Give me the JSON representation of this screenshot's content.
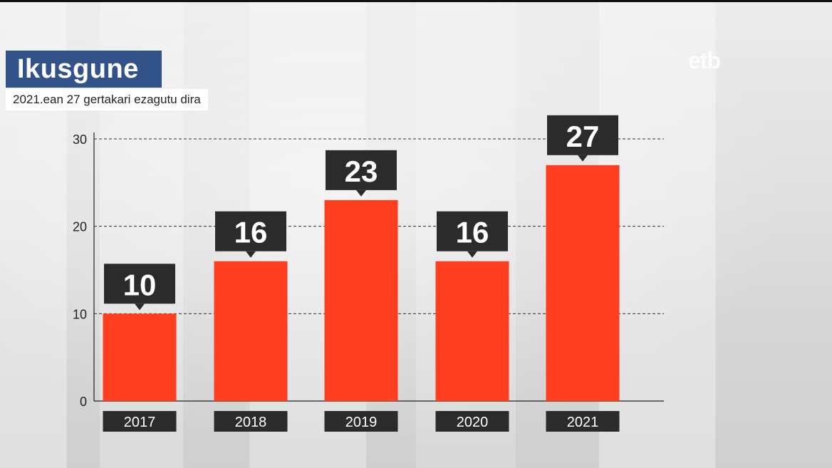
{
  "header": {
    "title": "Ikusgune",
    "subtitle": "2021.ean 27 gertakari ezagutu dira",
    "logo_text": "etb"
  },
  "colors": {
    "bar": "#ff3d1f",
    "label_box": "#2b2b2b",
    "title_box": "#31538a"
  },
  "chart_data": {
    "type": "bar",
    "categories": [
      "2017",
      "2018",
      "2019",
      "2020",
      "2021"
    ],
    "values": [
      10,
      16,
      23,
      16,
      27
    ],
    "data_labels": [
      "10",
      "16",
      "23",
      "16",
      "27"
    ],
    "ylim": [
      0,
      30
    ],
    "yticks": [
      0,
      10,
      20,
      30
    ],
    "ytick_labels": [
      "0",
      "10",
      "20",
      "30"
    ],
    "grid": "dashed horizontal",
    "title": "",
    "xlabel": "",
    "ylabel": ""
  }
}
